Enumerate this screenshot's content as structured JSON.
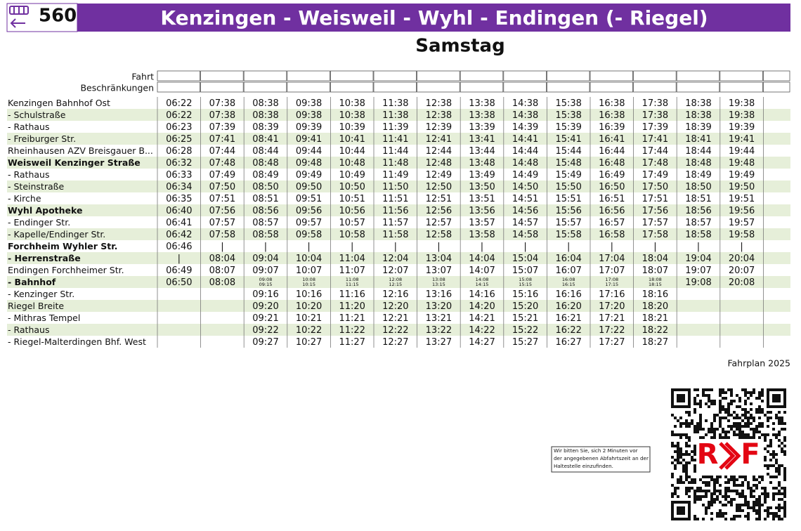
{
  "header": {
    "route": "560",
    "title": "Kenzingen - Weisweil - Wyhl - Endingen (- Riegel)",
    "subtitle": "Samstag"
  },
  "table": {
    "head_rows": [
      "Fahrt",
      "Beschränkungen"
    ],
    "rows": [
      {
        "stop": "Kenzingen Bahnhof Ost",
        "bold": false,
        "times": [
          "06:22",
          "07:38",
          "08:38",
          "09:38",
          "10:38",
          "11:38",
          "12:38",
          "13:38",
          "14:38",
          "15:38",
          "16:38",
          "17:38",
          "18:38",
          "19:38"
        ]
      },
      {
        "stop": "- Schulstraße",
        "bold": false,
        "times": [
          "06:22",
          "07:38",
          "08:38",
          "09:38",
          "10:38",
          "11:38",
          "12:38",
          "13:38",
          "14:38",
          "15:38",
          "16:38",
          "17:38",
          "18:38",
          "19:38"
        ]
      },
      {
        "stop": "- Rathaus",
        "bold": false,
        "times": [
          "06:23",
          "07:39",
          "08:39",
          "09:39",
          "10:39",
          "11:39",
          "12:39",
          "13:39",
          "14:39",
          "15:39",
          "16:39",
          "17:39",
          "18:39",
          "19:39"
        ]
      },
      {
        "stop": "- Freiburger Str.",
        "bold": false,
        "times": [
          "06:25",
          "07:41",
          "08:41",
          "09:41",
          "10:41",
          "11:41",
          "12:41",
          "13:41",
          "14:41",
          "15:41",
          "16:41",
          "17:41",
          "18:41",
          "19:41"
        ]
      },
      {
        "stop": "Rheinhausen AZV Breisgauer B...",
        "bold": false,
        "times": [
          "06:28",
          "07:44",
          "08:44",
          "09:44",
          "10:44",
          "11:44",
          "12:44",
          "13:44",
          "14:44",
          "15:44",
          "16:44",
          "17:44",
          "18:44",
          "19:44"
        ]
      },
      {
        "stop": "Weisweil Kenzinger Straße",
        "bold": true,
        "times": [
          "06:32",
          "07:48",
          "08:48",
          "09:48",
          "10:48",
          "11:48",
          "12:48",
          "13:48",
          "14:48",
          "15:48",
          "16:48",
          "17:48",
          "18:48",
          "19:48"
        ]
      },
      {
        "stop": "- Rathaus",
        "bold": false,
        "times": [
          "06:33",
          "07:49",
          "08:49",
          "09:49",
          "10:49",
          "11:49",
          "12:49",
          "13:49",
          "14:49",
          "15:49",
          "16:49",
          "17:49",
          "18:49",
          "19:49"
        ]
      },
      {
        "stop": "- Steinstraße",
        "bold": false,
        "times": [
          "06:34",
          "07:50",
          "08:50",
          "09:50",
          "10:50",
          "11:50",
          "12:50",
          "13:50",
          "14:50",
          "15:50",
          "16:50",
          "17:50",
          "18:50",
          "19:50"
        ]
      },
      {
        "stop": "- Kirche",
        "bold": false,
        "times": [
          "06:35",
          "07:51",
          "08:51",
          "09:51",
          "10:51",
          "11:51",
          "12:51",
          "13:51",
          "14:51",
          "15:51",
          "16:51",
          "17:51",
          "18:51",
          "19:51"
        ]
      },
      {
        "stop": "Wyhl Apotheke",
        "bold": true,
        "times": [
          "06:40",
          "07:56",
          "08:56",
          "09:56",
          "10:56",
          "11:56",
          "12:56",
          "13:56",
          "14:56",
          "15:56",
          "16:56",
          "17:56",
          "18:56",
          "19:56"
        ]
      },
      {
        "stop": "- Endinger Str.",
        "bold": false,
        "times": [
          "06:41",
          "07:57",
          "08:57",
          "09:57",
          "10:57",
          "11:57",
          "12:57",
          "13:57",
          "14:57",
          "15:57",
          "16:57",
          "17:57",
          "18:57",
          "19:57"
        ]
      },
      {
        "stop": "- Kapelle/Endinger Str.",
        "bold": false,
        "times": [
          "06:42",
          "07:58",
          "08:58",
          "09:58",
          "10:58",
          "11:58",
          "12:58",
          "13:58",
          "14:58",
          "15:58",
          "16:58",
          "17:58",
          "18:58",
          "19:58"
        ]
      },
      {
        "stop": "Forchheim Wyhler Str.",
        "bold": true,
        "times": [
          "06:46",
          "|",
          "|",
          "|",
          "|",
          "|",
          "|",
          "|",
          "|",
          "|",
          "|",
          "|",
          "|",
          "|"
        ]
      },
      {
        "stop": "- Herrenstraße",
        "bold": true,
        "times": [
          "|",
          "08:04",
          "09:04",
          "10:04",
          "11:04",
          "12:04",
          "13:04",
          "14:04",
          "15:04",
          "16:04",
          "17:04",
          "18:04",
          "19:04",
          "20:04"
        ]
      },
      {
        "stop": "Endingen Forchheimer Str.",
        "bold": false,
        "times": [
          "06:49",
          "08:07",
          "09:07",
          "10:07",
          "11:07",
          "12:07",
          "13:07",
          "14:07",
          "15:07",
          "16:07",
          "17:07",
          "18:07",
          "19:07",
          "20:07"
        ]
      },
      {
        "stop": "- Bahnhof",
        "bold": true,
        "times": [
          "06:50",
          "08:08",
          [
            "09:08",
            "09:15"
          ],
          [
            "10:08",
            "10:15"
          ],
          [
            "11:08",
            "11:15"
          ],
          [
            "12:08",
            "12:15"
          ],
          [
            "13:08",
            "13:15"
          ],
          [
            "14:08",
            "14:15"
          ],
          [
            "15:08",
            "15:15"
          ],
          [
            "16:08",
            "16:15"
          ],
          [
            "17:08",
            "17:15"
          ],
          [
            "18:08",
            "18:15"
          ],
          "19:08",
          "20:08"
        ]
      },
      {
        "stop": "- Kenzinger Str.",
        "bold": false,
        "times": [
          null,
          null,
          "09:16",
          "10:16",
          "11:16",
          "12:16",
          "13:16",
          "14:16",
          "15:16",
          "16:16",
          "17:16",
          "18:16",
          null,
          null
        ]
      },
      {
        "stop": "Riegel Breite",
        "bold": false,
        "times": [
          null,
          null,
          "09:20",
          "10:20",
          "11:20",
          "12:20",
          "13:20",
          "14:20",
          "15:20",
          "16:20",
          "17:20",
          "18:20",
          null,
          null
        ]
      },
      {
        "stop": "- Mithras Tempel",
        "bold": false,
        "times": [
          null,
          null,
          "09:21",
          "10:21",
          "11:21",
          "12:21",
          "13:21",
          "14:21",
          "15:21",
          "16:21",
          "17:21",
          "18:21",
          null,
          null
        ]
      },
      {
        "stop": "- Rathaus",
        "bold": false,
        "times": [
          null,
          null,
          "09:22",
          "10:22",
          "11:22",
          "12:22",
          "13:22",
          "14:22",
          "15:22",
          "16:22",
          "17:22",
          "18:22",
          null,
          null
        ]
      },
      {
        "stop": "- Riegel-Malterdingen Bhf. West",
        "bold": false,
        "times": [
          null,
          null,
          "09:27",
          "10:27",
          "11:27",
          "12:27",
          "13:27",
          "14:27",
          "15:27",
          "16:27",
          "17:27",
          "18:27",
          null,
          null
        ]
      }
    ]
  },
  "footer": {
    "edition": "Fahrplan 2025",
    "notice": [
      "Wir bitten Sie, sich 2 Minuten vor",
      "der angegebenen Abfahrtszeit an der",
      "Haltestelle einzufinden."
    ],
    "logo": [
      "R",
      "F"
    ]
  }
}
